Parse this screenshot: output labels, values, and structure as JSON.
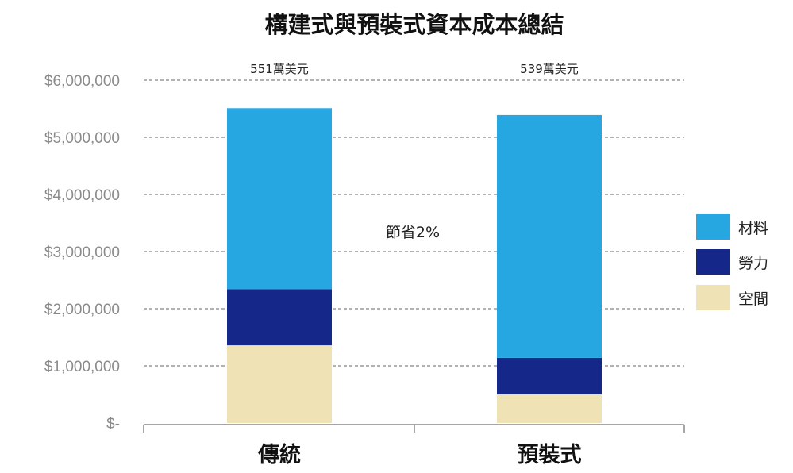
{
  "chart_data": {
    "type": "bar",
    "stacked": true,
    "title": "構建式與預裝式資本成本總結",
    "categories": [
      "傳統",
      "預裝式"
    ],
    "series": [
      {
        "name": "空間",
        "values": [
          1360000,
          500000
        ],
        "color": "#EFE2B5"
      },
      {
        "name": "勞力",
        "values": [
          980000,
          640000
        ],
        "color": "#15288A"
      },
      {
        "name": "材料",
        "values": [
          3170000,
          4250000
        ],
        "color": "#27A7E1"
      }
    ],
    "totals_labels": [
      "551萬美元",
      "539萬美元"
    ],
    "annotation": "節省2%",
    "yticks": [
      "$-",
      "$1,000,000",
      "$2,000,000",
      "$3,000,000",
      "$4,000,000",
      "$5,000,000",
      "$6,000,000"
    ],
    "ylim": [
      0,
      6000000
    ],
    "grid": true,
    "legend_position": "right"
  }
}
